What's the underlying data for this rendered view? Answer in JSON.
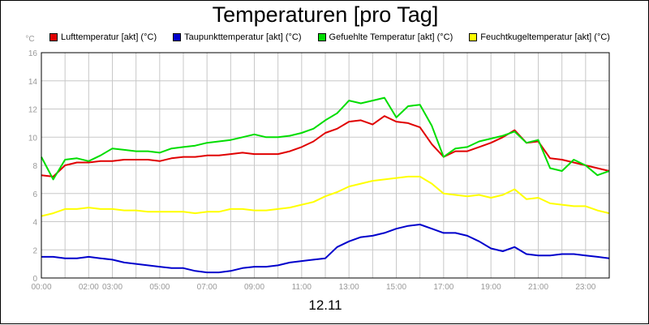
{
  "chart_data": {
    "type": "line",
    "title": "Temperaturen [pro Tag]",
    "ylabel": "°C",
    "xlabel": "12.11",
    "xlim": [
      0,
      24
    ],
    "ylim": [
      0,
      16
    ],
    "yticks": [
      0,
      2,
      4,
      6,
      8,
      10,
      12,
      14,
      16
    ],
    "xticks": [
      {
        "x": 0,
        "label": "00:00"
      },
      {
        "x": 2,
        "label": "02:00"
      },
      {
        "x": 3,
        "label": "03:00"
      },
      {
        "x": 5,
        "label": "05:00"
      },
      {
        "x": 7,
        "label": "07:00"
      },
      {
        "x": 9,
        "label": "09:00"
      },
      {
        "x": 11,
        "label": "11:00"
      },
      {
        "x": 13,
        "label": "13:00"
      },
      {
        "x": 15,
        "label": "15:00"
      },
      {
        "x": 17,
        "label": "17:00"
      },
      {
        "x": 19,
        "label": "19:00"
      },
      {
        "x": 21,
        "label": "21:00"
      },
      {
        "x": 23,
        "label": "23:00"
      }
    ],
    "grid": true,
    "legend_position": "top",
    "series": [
      {
        "name": "Lufttemperatur [akt] (°C)",
        "color": "#e00000",
        "x": [
          0,
          0.5,
          1,
          1.5,
          2,
          2.5,
          3,
          3.5,
          4,
          4.5,
          5,
          5.5,
          6,
          6.5,
          7,
          7.5,
          8,
          8.5,
          9,
          9.5,
          10,
          10.5,
          11,
          11.5,
          12,
          12.5,
          13,
          13.5,
          14,
          14.5,
          15,
          15.5,
          16,
          16.5,
          17,
          17.5,
          18,
          18.5,
          19,
          19.5,
          20,
          20.5,
          21,
          21.5,
          22,
          22.5,
          23,
          23.5,
          24
        ],
        "values": [
          7.3,
          7.2,
          8.0,
          8.2,
          8.2,
          8.3,
          8.3,
          8.4,
          8.4,
          8.4,
          8.3,
          8.5,
          8.6,
          8.6,
          8.7,
          8.7,
          8.8,
          8.9,
          8.8,
          8.8,
          8.8,
          9.0,
          9.3,
          9.7,
          10.3,
          10.6,
          11.1,
          11.2,
          10.9,
          11.5,
          11.1,
          11.0,
          10.7,
          9.5,
          8.6,
          9.0,
          9.0,
          9.3,
          9.6,
          10.0,
          10.5,
          9.6,
          9.7,
          8.5,
          8.4,
          8.2,
          8.0,
          7.8,
          7.6
        ]
      },
      {
        "name": "Taupunkttemperatur [akt] (°C)",
        "color": "#0000cc",
        "x": [
          0,
          0.5,
          1,
          1.5,
          2,
          2.5,
          3,
          3.5,
          4,
          4.5,
          5,
          5.5,
          6,
          6.5,
          7,
          7.5,
          8,
          8.5,
          9,
          9.5,
          10,
          10.5,
          11,
          11.5,
          12,
          12.5,
          13,
          13.5,
          14,
          14.5,
          15,
          15.5,
          16,
          16.5,
          17,
          17.5,
          18,
          18.5,
          19,
          19.5,
          20,
          20.5,
          21,
          21.5,
          22,
          22.5,
          23,
          23.5,
          24
        ],
        "values": [
          1.5,
          1.5,
          1.4,
          1.4,
          1.5,
          1.4,
          1.3,
          1.1,
          1.0,
          0.9,
          0.8,
          0.7,
          0.7,
          0.5,
          0.4,
          0.4,
          0.5,
          0.7,
          0.8,
          0.8,
          0.9,
          1.1,
          1.2,
          1.3,
          1.4,
          2.2,
          2.6,
          2.9,
          3.0,
          3.2,
          3.5,
          3.7,
          3.8,
          3.5,
          3.2,
          3.2,
          3.0,
          2.6,
          2.1,
          1.9,
          2.2,
          1.7,
          1.6,
          1.6,
          1.7,
          1.7,
          1.6,
          1.5,
          1.4
        ]
      },
      {
        "name": "Gefuehlte Temperatur [akt] (°C)",
        "color": "#00dd00",
        "x": [
          0,
          0.5,
          1,
          1.5,
          2,
          2.5,
          3,
          3.5,
          4,
          4.5,
          5,
          5.5,
          6,
          6.5,
          7,
          7.5,
          8,
          8.5,
          9,
          9.5,
          10,
          10.5,
          11,
          11.5,
          12,
          12.5,
          13,
          13.5,
          14,
          14.5,
          15,
          15.5,
          16,
          16.5,
          17,
          17.5,
          18,
          18.5,
          19,
          19.5,
          20,
          20.5,
          21,
          21.5,
          22,
          22.5,
          23,
          23.5,
          24
        ],
        "values": [
          8.6,
          7.0,
          8.4,
          8.5,
          8.3,
          8.7,
          9.2,
          9.1,
          9.0,
          9.0,
          8.9,
          9.2,
          9.3,
          9.4,
          9.6,
          9.7,
          9.8,
          10.0,
          10.2,
          10.0,
          10.0,
          10.1,
          10.3,
          10.6,
          11.2,
          11.7,
          12.6,
          12.4,
          12.6,
          12.8,
          11.4,
          12.2,
          12.3,
          10.8,
          8.6,
          9.2,
          9.3,
          9.7,
          9.9,
          10.1,
          10.4,
          9.6,
          9.8,
          7.8,
          7.6,
          8.4,
          8.0,
          7.3,
          7.6
        ]
      },
      {
        "name": "Feuchtkugeltemperatur [akt] (°C)",
        "color": "#ffff00",
        "x": [
          0,
          0.5,
          1,
          1.5,
          2,
          2.5,
          3,
          3.5,
          4,
          4.5,
          5,
          5.5,
          6,
          6.5,
          7,
          7.5,
          8,
          8.5,
          9,
          9.5,
          10,
          10.5,
          11,
          11.5,
          12,
          12.5,
          13,
          13.5,
          14,
          14.5,
          15,
          15.5,
          16,
          16.5,
          17,
          17.5,
          18,
          18.5,
          19,
          19.5,
          20,
          20.5,
          21,
          21.5,
          22,
          22.5,
          23,
          23.5,
          24
        ],
        "values": [
          4.4,
          4.6,
          4.9,
          4.9,
          5.0,
          4.9,
          4.9,
          4.8,
          4.8,
          4.7,
          4.7,
          4.7,
          4.7,
          4.6,
          4.7,
          4.7,
          4.9,
          4.9,
          4.8,
          4.8,
          4.9,
          5.0,
          5.2,
          5.4,
          5.8,
          6.1,
          6.5,
          6.7,
          6.9,
          7.0,
          7.1,
          7.2,
          7.2,
          6.7,
          6.0,
          5.9,
          5.8,
          5.9,
          5.7,
          5.9,
          6.3,
          5.6,
          5.7,
          5.3,
          5.2,
          5.1,
          5.1,
          4.8,
          4.6
        ]
      }
    ]
  }
}
